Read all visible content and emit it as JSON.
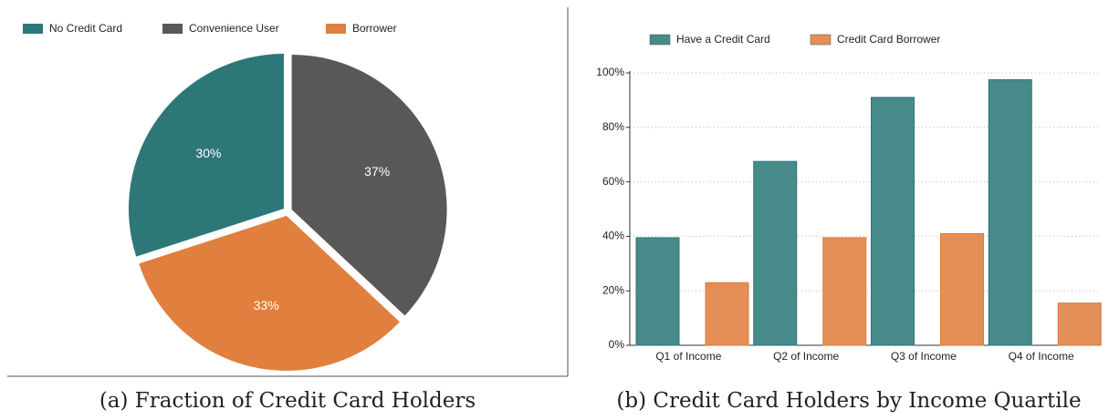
{
  "chart_data": [
    {
      "type": "pie",
      "caption": "(a) Fraction of Credit Card Holders",
      "categories": [
        "No Credit Card",
        "Convenience User",
        "Borrower"
      ],
      "values": [
        30,
        37,
        33
      ],
      "value_labels": [
        "30%",
        "37%",
        "33%"
      ],
      "colors": [
        "#2e7778",
        "#5a5856",
        "#e07f3e"
      ],
      "legend": "top-left"
    },
    {
      "type": "bar",
      "caption": "(b) Credit Card Holders by Income Quartile",
      "categories": [
        "Q1 of Income",
        "Q2 of Income",
        "Q3 of Income",
        "Q4 of Income"
      ],
      "series": [
        {
          "name": "Have a Credit Card",
          "color": "#468a8a",
          "values": [
            39.5,
            67.5,
            91,
            97.5
          ]
        },
        {
          "name": "Credit Card Borrower",
          "color": "#e38f57",
          "values": [
            23,
            39.5,
            41,
            15.5
          ]
        }
      ],
      "ylim": [
        0,
        100
      ],
      "yticks": [
        {
          "value": 0,
          "label": "0%"
        },
        {
          "value": 20,
          "label": "20%"
        },
        {
          "value": 40,
          "label": "40%"
        },
        {
          "value": 60,
          "label": "60%"
        },
        {
          "value": 80,
          "label": "80%"
        },
        {
          "value": 100,
          "label": "100%"
        }
      ],
      "grid": true,
      "legend": "top"
    }
  ]
}
